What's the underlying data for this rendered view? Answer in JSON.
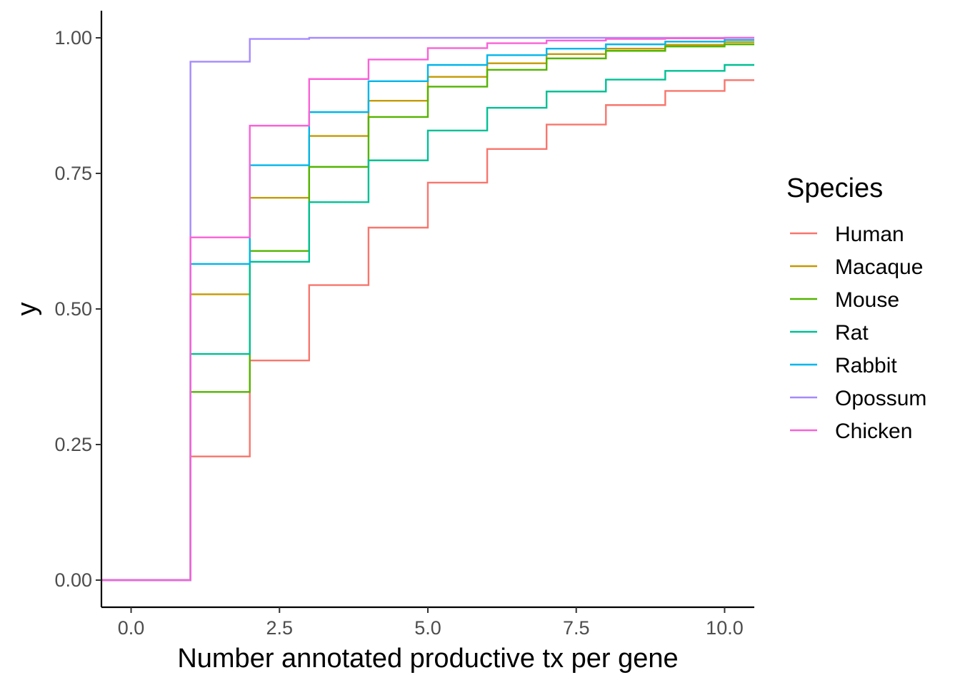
{
  "chart_data": {
    "type": "line",
    "step": true,
    "xlabel": "Number annotated productive tx per gene",
    "ylabel": "y",
    "xlim": [
      -0.5,
      10.5
    ],
    "ylim": [
      -0.05,
      1.05
    ],
    "xticks": [
      0.0,
      2.5,
      5.0,
      7.5,
      10.0
    ],
    "xtick_labels": [
      "0.0",
      "2.5",
      "5.0",
      "7.5",
      "10.0"
    ],
    "yticks": [
      0.0,
      0.25,
      0.5,
      0.75,
      1.0
    ],
    "ytick_labels": [
      "0.00",
      "0.25",
      "0.50",
      "0.75",
      "1.00"
    ],
    "grid": false,
    "legend": {
      "title": "Species",
      "position": "right"
    },
    "x": [
      1,
      2,
      3,
      4,
      5,
      6,
      7,
      8,
      9,
      10
    ],
    "series": [
      {
        "name": "Human",
        "color": "#F8766D",
        "values": [
          0.228,
          0.405,
          0.544,
          0.65,
          0.733,
          0.795,
          0.84,
          0.876,
          0.902,
          0.922
        ]
      },
      {
        "name": "Macaque",
        "color": "#C49A00",
        "values": [
          0.527,
          0.705,
          0.819,
          0.884,
          0.928,
          0.953,
          0.97,
          0.98,
          0.987,
          0.992
        ]
      },
      {
        "name": "Mouse",
        "color": "#53B400",
        "values": [
          0.347,
          0.607,
          0.762,
          0.854,
          0.91,
          0.941,
          0.962,
          0.976,
          0.984,
          0.988
        ]
      },
      {
        "name": "Rat",
        "color": "#00C094",
        "values": [
          0.417,
          0.587,
          0.697,
          0.774,
          0.829,
          0.871,
          0.901,
          0.923,
          0.939,
          0.95
        ]
      },
      {
        "name": "Rabbit",
        "color": "#00B6EB",
        "values": [
          0.583,
          0.765,
          0.863,
          0.92,
          0.95,
          0.968,
          0.98,
          0.988,
          0.993,
          0.996
        ]
      },
      {
        "name": "Opossum",
        "color": "#A58AFF",
        "values": [
          0.956,
          0.998,
          1.0,
          1.0,
          1.0,
          1.0,
          1.0,
          1.0,
          1.0,
          1.0
        ]
      },
      {
        "name": "Chicken",
        "color": "#FB61D7",
        "values": [
          0.632,
          0.838,
          0.924,
          0.96,
          0.981,
          0.99,
          0.995,
          0.998,
          0.999,
          1.0
        ]
      }
    ]
  }
}
